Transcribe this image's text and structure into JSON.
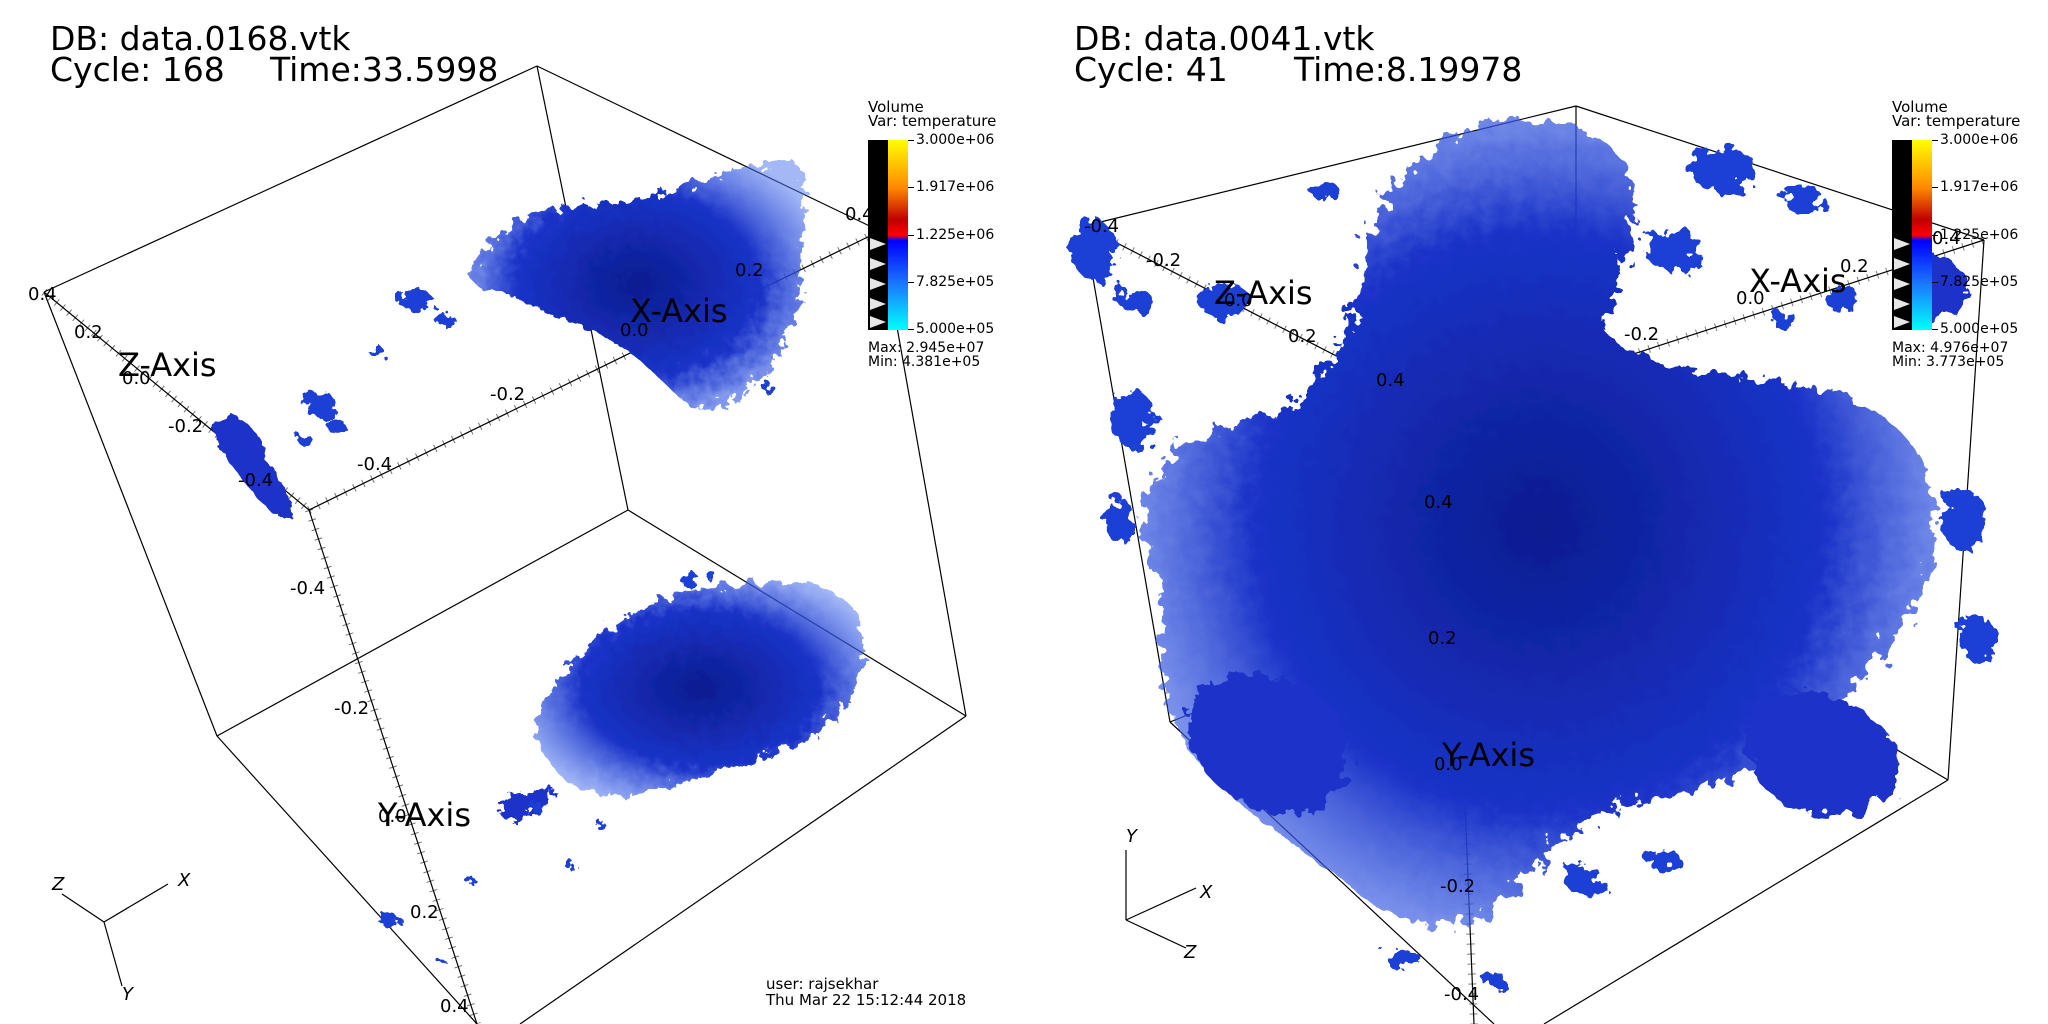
{
  "left_panel": {
    "db_label": "DB: data.0168.vtk",
    "cycle_label": "Cycle: 168",
    "time_label": "Time:33.5998",
    "legend": {
      "title": "Volume",
      "variable": "Var: temperature",
      "ticks": [
        "3.000e+06",
        "1.917e+06",
        "1.225e+06",
        "7.825e+05",
        "5.000e+05"
      ],
      "max": "Max:  2.945e+07",
      "min": "Min:  4.381e+05"
    },
    "axes": {
      "x_title": "X-Axis",
      "y_title": "Y-Axis",
      "z_title": "Z-Axis",
      "x_ticks": [
        "-0.4",
        "-0.2",
        "0.0",
        "0.2",
        "0.4"
      ],
      "y_ticks": [
        "-0.4",
        "-0.2",
        "0.0",
        "0.2",
        "0.4"
      ],
      "z_ticks": [
        "0.4",
        "0.2",
        "0.0",
        "-0.2",
        "-0.4"
      ]
    },
    "triad": {
      "x": "X",
      "y": "Y",
      "z": "Z"
    },
    "user": "user: rajsekhar",
    "date": "Thu Mar 22 15:12:44 2018"
  },
  "right_panel": {
    "db_label": "DB: data.0041.vtk",
    "cycle_label": "Cycle: 41",
    "time_label": "Time:8.19978",
    "legend": {
      "title": "Volume",
      "variable": "Var: temperature",
      "ticks": [
        "3.000e+06",
        "1.917e+06",
        "1.225e+06",
        "7.825e+05",
        "5.000e+05"
      ],
      "max": "Max:  4.976e+07",
      "min": "Min:  3.773e+05"
    },
    "axes": {
      "x_title": "X-Axis",
      "y_title": "Y-Axis",
      "z_title": "Z-Axis",
      "x_ticks": [
        "-0.2",
        "0.0",
        "0.2",
        "0.4"
      ],
      "y_ticks": [
        "0.4",
        "0.2",
        "0.0",
        "-0.2",
        "-0.4"
      ],
      "z_ticks": [
        "-0.4",
        "-0.2",
        "0.0",
        "0.2",
        "0.4"
      ]
    },
    "triad": {
      "x": "X",
      "y": "Y",
      "z": "Z"
    }
  },
  "colors": {
    "volume_dark": "#0a1a8a",
    "volume_mid": "#1f3fd6",
    "volume_light": "#5f86f0",
    "frame": "#000000"
  }
}
